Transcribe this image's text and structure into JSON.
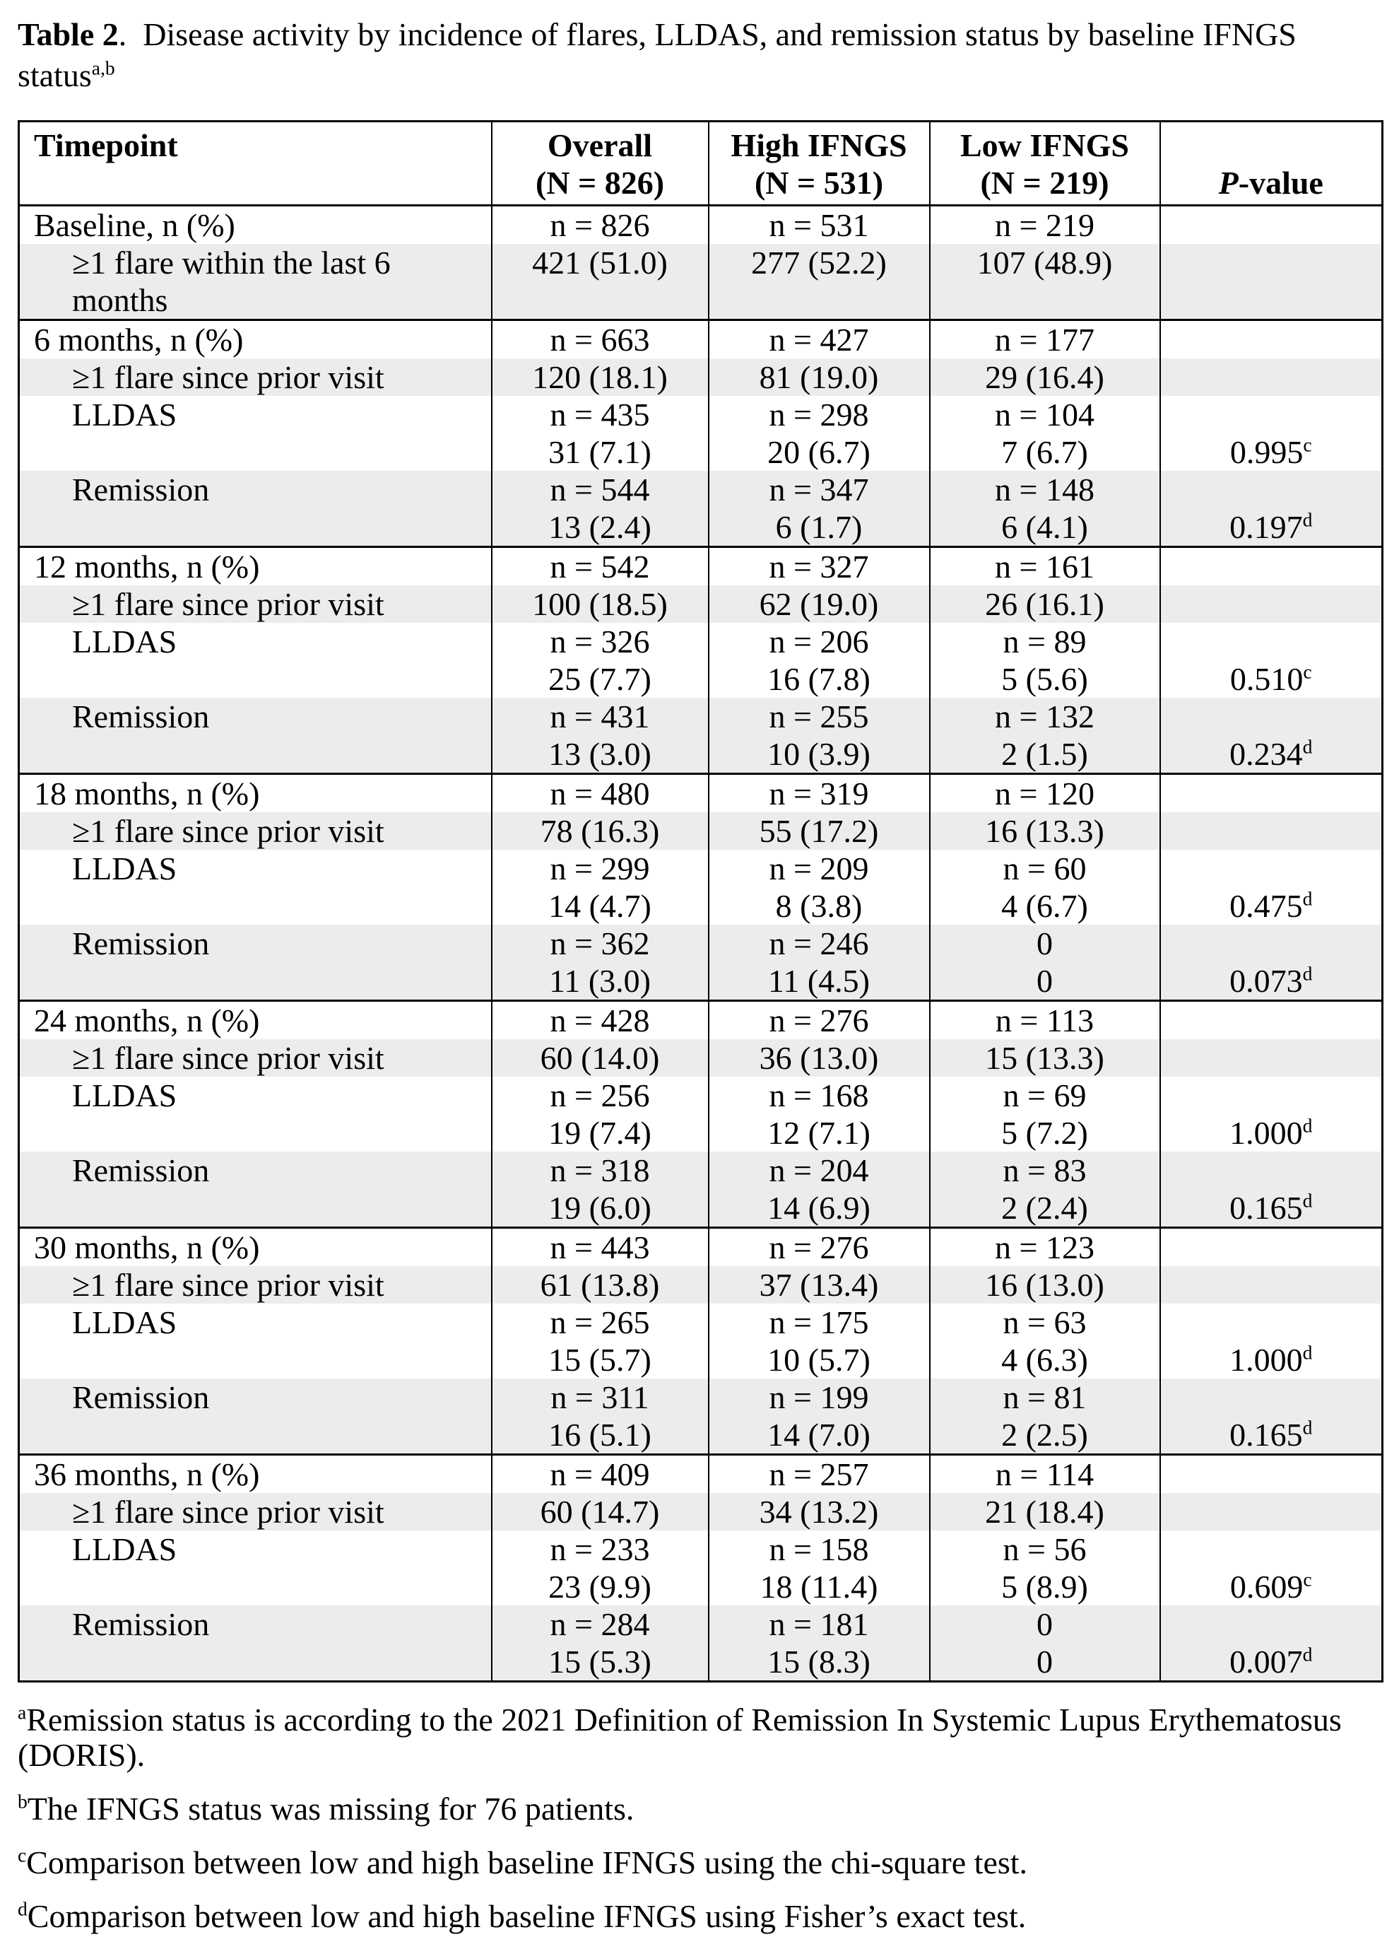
{
  "title": {
    "bold": "Table 2",
    "rest": ".  Disease activity by incidence of flares, LLDAS, and remission status by baseline IFNGS status",
    "sup": "a,b"
  },
  "table": {
    "header": {
      "timepoint": "Timepoint",
      "overall": [
        "Overall",
        "(N = 826)"
      ],
      "high": [
        "High IFNGS",
        "(N = 531)"
      ],
      "low": [
        "Low IFNGS",
        "(N = 219)"
      ],
      "pvalue_italic": "P",
      "pvalue_rest": "-value"
    },
    "sections": [
      {
        "timepoint_label": "Baseline, n (%)",
        "cells": [
          "n = 826",
          "n = 531",
          "n = 219"
        ],
        "rows": [
          {
            "label": "≥1 flare within the last 6 months",
            "shaded": true,
            "two_line": false,
            "values": [
              "421 (51.0)",
              "277 (52.2)",
              "107 (48.9)"
            ],
            "p": "",
            "p_sup": ""
          }
        ]
      },
      {
        "timepoint_label": "6 months, n (%)",
        "cells": [
          "n = 663",
          "n = 427",
          "n = 177"
        ],
        "rows": [
          {
            "label": "≥1 flare since prior visit",
            "shaded": true,
            "two_line": false,
            "values": [
              "120 (18.1)",
              "81 (19.0)",
              "29 (16.4)"
            ],
            "p": "",
            "p_sup": ""
          },
          {
            "label": "LLDAS",
            "shaded": false,
            "two_line": true,
            "n": [
              "n = 435",
              "n = 298",
              "n = 104"
            ],
            "values": [
              "31 (7.1)",
              "20 (6.7)",
              "7 (6.7)"
            ],
            "p": "0.995",
            "p_sup": "c"
          },
          {
            "label": "Remission",
            "shaded": true,
            "two_line": true,
            "n": [
              "n = 544",
              "n = 347",
              "n = 148"
            ],
            "values": [
              "13 (2.4)",
              "6 (1.7)",
              "6 (4.1)"
            ],
            "p": "0.197",
            "p_sup": "d"
          }
        ]
      },
      {
        "timepoint_label": "12 months, n (%)",
        "cells": [
          "n = 542",
          "n = 327",
          "n = 161"
        ],
        "rows": [
          {
            "label": "≥1 flare since prior visit",
            "shaded": true,
            "two_line": false,
            "values": [
              "100 (18.5)",
              "62 (19.0)",
              "26 (16.1)"
            ],
            "p": "",
            "p_sup": ""
          },
          {
            "label": "LLDAS",
            "shaded": false,
            "two_line": true,
            "n": [
              "n = 326",
              "n = 206",
              "n = 89"
            ],
            "values": [
              "25 (7.7)",
              "16 (7.8)",
              "5 (5.6)"
            ],
            "p": "0.510",
            "p_sup": "c"
          },
          {
            "label": "Remission",
            "shaded": true,
            "two_line": true,
            "n": [
              "n = 431",
              "n = 255",
              "n = 132"
            ],
            "values": [
              "13 (3.0)",
              "10 (3.9)",
              "2 (1.5)"
            ],
            "p": "0.234",
            "p_sup": "d"
          }
        ]
      },
      {
        "timepoint_label": "18 months, n (%)",
        "cells": [
          "n = 480",
          "n = 319",
          "n = 120"
        ],
        "rows": [
          {
            "label": "≥1 flare since prior visit",
            "shaded": true,
            "two_line": false,
            "values": [
              "78 (16.3)",
              "55 (17.2)",
              "16 (13.3)"
            ],
            "p": "",
            "p_sup": ""
          },
          {
            "label": "LLDAS",
            "shaded": false,
            "two_line": true,
            "n": [
              "n = 299",
              "n = 209",
              "n = 60"
            ],
            "values": [
              "14 (4.7)",
              "8 (3.8)",
              "4 (6.7)"
            ],
            "p": "0.475",
            "p_sup": "d"
          },
          {
            "label": "Remission",
            "shaded": true,
            "two_line": true,
            "n": [
              "n = 362",
              "n = 246",
              "0"
            ],
            "values": [
              "11 (3.0)",
              "11 (4.5)",
              "0"
            ],
            "p": "0.073",
            "p_sup": "d"
          }
        ]
      },
      {
        "timepoint_label": "24 months, n (%)",
        "cells": [
          "n = 428",
          "n = 276",
          "n = 113"
        ],
        "rows": [
          {
            "label": "≥1 flare since prior visit",
            "shaded": true,
            "two_line": false,
            "values": [
              "60 (14.0)",
              "36 (13.0)",
              "15 (13.3)"
            ],
            "p": "",
            "p_sup": ""
          },
          {
            "label": "LLDAS",
            "shaded": false,
            "two_line": true,
            "n": [
              "n = 256",
              "n = 168",
              "n = 69"
            ],
            "values": [
              "19 (7.4)",
              "12 (7.1)",
              "5 (7.2)"
            ],
            "p": "1.000",
            "p_sup": "d"
          },
          {
            "label": "Remission",
            "shaded": true,
            "two_line": true,
            "n": [
              "n = 318",
              "n = 204",
              "n = 83"
            ],
            "values": [
              "19 (6.0)",
              "14 (6.9)",
              "2 (2.4)"
            ],
            "p": "0.165",
            "p_sup": "d"
          }
        ]
      },
      {
        "timepoint_label": "30 months, n (%)",
        "cells": [
          "n = 443",
          "n = 276",
          "n = 123"
        ],
        "rows": [
          {
            "label": "≥1 flare since prior visit",
            "shaded": true,
            "two_line": false,
            "values": [
              "61 (13.8)",
              "37 (13.4)",
              "16 (13.0)"
            ],
            "p": "",
            "p_sup": ""
          },
          {
            "label": "LLDAS",
            "shaded": false,
            "two_line": true,
            "n": [
              "n = 265",
              "n = 175",
              "n = 63"
            ],
            "values": [
              "15 (5.7)",
              "10 (5.7)",
              "4 (6.3)"
            ],
            "p": "1.000",
            "p_sup": "d"
          },
          {
            "label": "Remission",
            "shaded": true,
            "two_line": true,
            "n": [
              "n = 311",
              "n = 199",
              "n = 81"
            ],
            "values": [
              "16 (5.1)",
              "14 (7.0)",
              "2 (2.5)"
            ],
            "p": "0.165",
            "p_sup": "d"
          }
        ]
      },
      {
        "timepoint_label": "36 months, n (%)",
        "cells": [
          "n = 409",
          "n = 257",
          "n = 114"
        ],
        "rows": [
          {
            "label": "≥1 flare since prior visit",
            "shaded": true,
            "two_line": false,
            "values": [
              "60 (14.7)",
              "34 (13.2)",
              "21 (18.4)"
            ],
            "p": "",
            "p_sup": ""
          },
          {
            "label": "LLDAS",
            "shaded": false,
            "two_line": true,
            "n": [
              "n = 233",
              "n = 158",
              "n = 56"
            ],
            "values": [
              "23 (9.9)",
              "18 (11.4)",
              "5 (8.9)"
            ],
            "p": "0.609",
            "p_sup": "c"
          },
          {
            "label": "Remission",
            "shaded": true,
            "two_line": true,
            "n": [
              "n = 284",
              "n = 181",
              "0"
            ],
            "values": [
              "15 (5.3)",
              "15 (8.3)",
              "0"
            ],
            "p": "0.007",
            "p_sup": "d"
          }
        ]
      }
    ]
  },
  "footnotes": [
    {
      "sup": "a",
      "text": "Remission status is according to the 2021 Definition of Remission In Systemic Lupus Erythematosus (DORIS)."
    },
    {
      "sup": "b",
      "text": "The IFNGS status was missing for 76 patients."
    },
    {
      "sup": "c",
      "text": "Comparison between low and high baseline IFNGS using the chi-square test."
    },
    {
      "sup": "d",
      "text": "Comparison between low and high baseline IFNGS using Fisher’s exact test."
    }
  ]
}
